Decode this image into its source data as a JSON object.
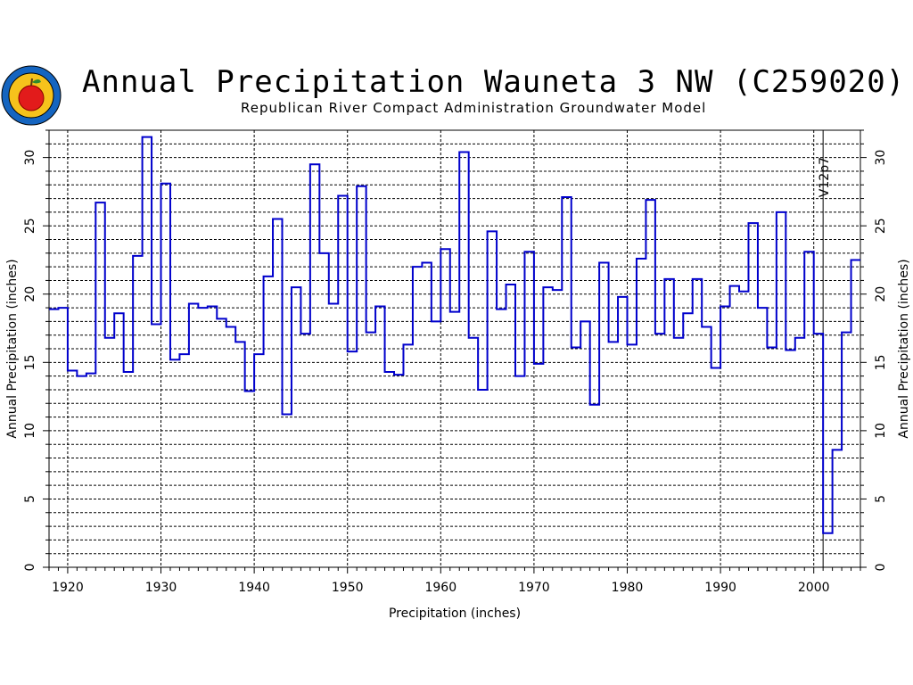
{
  "header": {
    "title": "Annual Precipitation Wauneta 3 NW (C259020)",
    "subtitle": "Republican River Compact Administration Groundwater Model"
  },
  "colors": {
    "series": "#0000cc",
    "grid": "#000000",
    "logo_ring": "#1565c0",
    "logo_apple": "#e21b1b"
  },
  "logo_icon": "apple-seal-icon",
  "chart_data": {
    "type": "line",
    "step": true,
    "xlabel": "Precipitation  (inches)",
    "ylabel": "Annual  Precipitation  (inches)",
    "ylabel_right": "Annual  Precipitation  (inches)",
    "xlim": [
      1918,
      2005
    ],
    "ylim": [
      0,
      32
    ],
    "xticks": [
      1920,
      1930,
      1940,
      1950,
      1960,
      1970,
      1980,
      1990,
      2000
    ],
    "yticks": [
      0,
      5,
      10,
      15,
      20,
      25,
      30
    ],
    "grid": true,
    "vline": {
      "x": 2001,
      "label": "V12p7"
    },
    "series": [
      {
        "x": [
          1918,
          1919,
          1920,
          1921,
          1922,
          1923,
          1924,
          1925,
          1926,
          1927,
          1928,
          1929,
          1930,
          1931,
          1932,
          1933,
          1934,
          1935,
          1936,
          1937,
          1938,
          1939,
          1940,
          1941,
          1942,
          1943,
          1944,
          1945,
          1946,
          1947,
          1948,
          1949,
          1950,
          1951,
          1952,
          1953,
          1954,
          1955,
          1956,
          1957,
          1958,
          1959,
          1960,
          1961,
          1962,
          1963,
          1964,
          1965,
          1966,
          1967,
          1968,
          1969,
          1970,
          1971,
          1972,
          1973,
          1974,
          1975,
          1976,
          1977,
          1978,
          1979,
          1980,
          1981,
          1982,
          1983,
          1984,
          1985,
          1986,
          1987,
          1988,
          1989,
          1990,
          1991,
          1992,
          1993,
          1994,
          1995,
          1996,
          1997,
          1998,
          1999,
          2000,
          2001,
          2002,
          2003,
          2004
        ],
        "values": [
          18.9,
          19.0,
          14.4,
          14.0,
          14.2,
          26.7,
          16.8,
          18.6,
          14.3,
          22.8,
          31.5,
          17.8,
          28.1,
          15.2,
          15.6,
          19.3,
          19.0,
          19.1,
          18.2,
          17.6,
          16.5,
          12.9,
          15.6,
          21.3,
          25.5,
          11.2,
          20.5,
          17.1,
          29.5,
          23.0,
          19.3,
          27.2,
          15.8,
          27.9,
          17.2,
          19.1,
          14.3,
          14.1,
          16.3,
          22.0,
          22.3,
          18.0,
          23.3,
          18.7,
          30.4,
          16.8,
          13.0,
          24.6,
          18.9,
          20.7,
          14.0,
          23.1,
          14.9,
          20.5,
          20.3,
          27.1,
          16.1,
          18.0,
          11.9,
          22.3,
          16.5,
          19.8,
          16.3,
          22.6,
          26.9,
          17.1,
          21.1,
          16.8,
          18.6,
          21.1,
          17.6,
          14.6,
          19.1,
          20.6,
          20.2,
          25.2,
          19.0,
          16.1,
          26.0,
          15.9,
          16.8,
          23.1,
          17.1,
          2.5,
          8.6,
          17.2,
          22.5
        ]
      }
    ]
  }
}
